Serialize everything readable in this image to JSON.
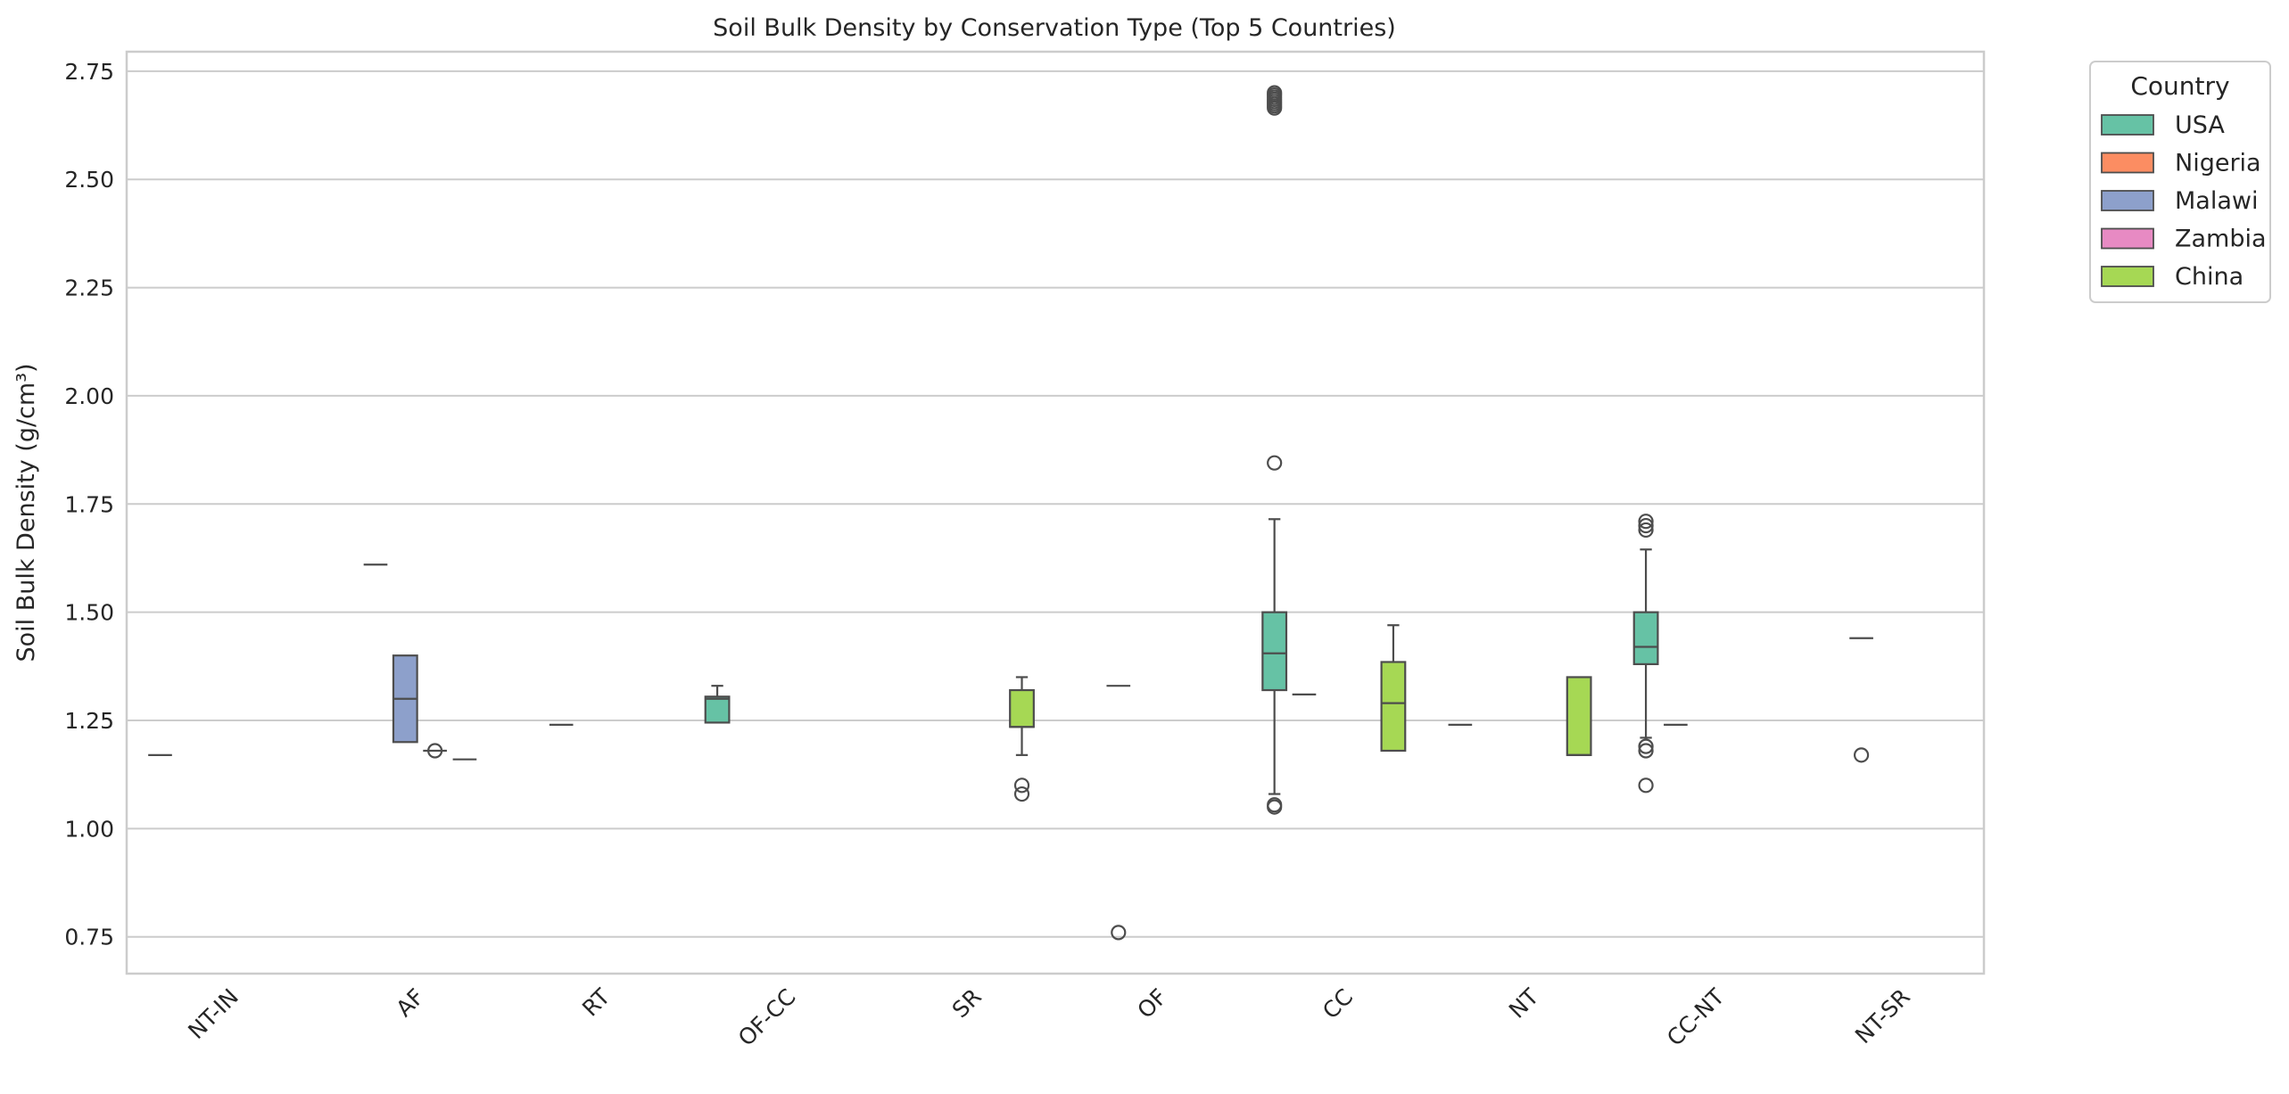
{
  "chart_data": {
    "type": "box",
    "title": "Soil Bulk Density by Conservation Type (Top 5 Countries)",
    "xlabel": "",
    "ylabel": "Soil Bulk Density (g/cm³)",
    "ylim": [
      0.665,
      2.795
    ],
    "yticks": [
      0.75,
      1.0,
      1.25,
      1.5,
      1.75,
      2.0,
      2.25,
      2.5,
      2.75
    ],
    "ytick_labels": [
      "0.75",
      "1.00",
      "1.25",
      "1.50",
      "1.75",
      "2.00",
      "2.25",
      "2.50",
      "2.75"
    ],
    "grid": true,
    "legend": {
      "title": "Country",
      "placement": "outside upper right"
    },
    "categories": [
      "NT-IN",
      "AF",
      "RT",
      "OF-CC",
      "SR",
      "OF",
      "CC",
      "NT",
      "CC-NT",
      "NT-SR"
    ],
    "series": [
      {
        "name": "USA",
        "color": "#66c2a5",
        "boxes": [
          {
            "category": "NT-IN",
            "min": 1.17,
            "q1": 1.17,
            "median": 1.17,
            "q3": 1.17,
            "max": 1.17,
            "outliers": []
          },
          {
            "category": "OF-CC",
            "min": 1.245,
            "q1": 1.245,
            "median": 1.3,
            "q3": 1.305,
            "max": 1.33,
            "outliers": []
          },
          {
            "category": "CC",
            "min": 1.08,
            "q1": 1.32,
            "median": 1.405,
            "q3": 1.5,
            "max": 1.715,
            "outliers": [
              1.05,
              1.055,
              1.845,
              2.665,
              2.67,
              2.675,
              2.68,
              2.685,
              2.69,
              2.695,
              2.7
            ]
          },
          {
            "category": "NT",
            "min": 1.24,
            "q1": 1.24,
            "median": 1.24,
            "q3": 1.24,
            "max": 1.24,
            "outliers": []
          },
          {
            "category": "CC-NT",
            "min": 1.21,
            "q1": 1.38,
            "median": 1.42,
            "q3": 1.5,
            "max": 1.645,
            "outliers": [
              1.1,
              1.18,
              1.19,
              1.69,
              1.7,
              1.71
            ]
          }
        ]
      },
      {
        "name": "Nigeria",
        "color": "#fc8d62",
        "boxes": [
          {
            "category": "AF",
            "min": 1.61,
            "q1": 1.61,
            "median": 1.61,
            "q3": 1.61,
            "max": 1.61,
            "outliers": []
          },
          {
            "category": "RT",
            "min": 1.24,
            "q1": 1.24,
            "median": 1.24,
            "q3": 1.24,
            "max": 1.24,
            "outliers": []
          },
          {
            "category": "OF",
            "min": 1.33,
            "q1": 1.33,
            "median": 1.33,
            "q3": 1.33,
            "max": 1.33,
            "outliers": [
              0.76
            ]
          },
          {
            "category": "CC",
            "min": 1.31,
            "q1": 1.31,
            "median": 1.31,
            "q3": 1.31,
            "max": 1.31,
            "outliers": []
          },
          {
            "category": "CC-NT",
            "min": 1.24,
            "q1": 1.24,
            "median": 1.24,
            "q3": 1.24,
            "max": 1.24,
            "outliers": []
          },
          {
            "category": "NT-SR",
            "min": 1.44,
            "q1": 1.44,
            "median": 1.44,
            "q3": 1.44,
            "max": 1.44,
            "outliers": [
              1.17
            ]
          }
        ]
      },
      {
        "name": "Malawi",
        "color": "#8da0cb",
        "boxes": [
          {
            "category": "AF",
            "min": 1.2,
            "q1": 1.2,
            "median": 1.3,
            "q3": 1.4,
            "max": 1.4,
            "outliers": []
          }
        ]
      },
      {
        "name": "Zambia",
        "color": "#e78ac3",
        "boxes": [
          {
            "category": "AF",
            "min": 1.18,
            "q1": 1.18,
            "median": 1.18,
            "q3": 1.18,
            "max": 1.18,
            "outliers": [
              1.18
            ]
          }
        ]
      },
      {
        "name": "China",
        "color": "#a6d854",
        "boxes": [
          {
            "category": "AF",
            "min": 1.16,
            "q1": 1.16,
            "median": 1.16,
            "q3": 1.16,
            "max": 1.16,
            "outliers": []
          },
          {
            "category": "SR",
            "min": 1.17,
            "q1": 1.235,
            "median": 1.235,
            "q3": 1.32,
            "max": 1.35,
            "outliers": [
              1.08,
              1.1
            ]
          },
          {
            "category": "CC",
            "min": 1.18,
            "q1": 1.18,
            "median": 1.29,
            "q3": 1.385,
            "max": 1.47,
            "outliers": []
          },
          {
            "category": "NT",
            "min": 1.17,
            "q1": 1.17,
            "median": 1.17,
            "q3": 1.35,
            "max": 1.35,
            "outliers": []
          }
        ]
      }
    ]
  }
}
